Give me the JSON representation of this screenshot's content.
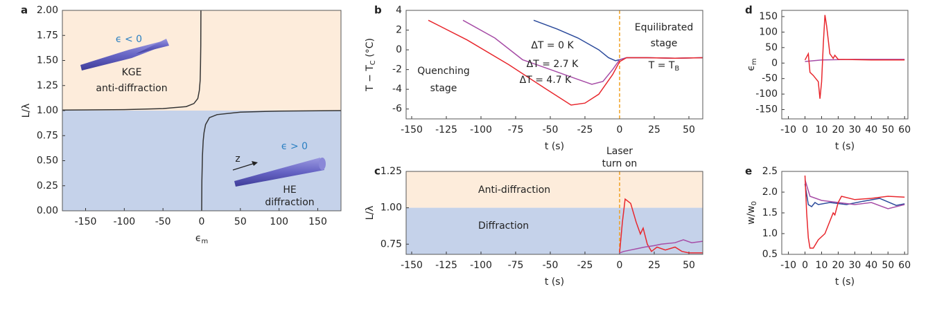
{
  "chart_data": [
    {
      "type": "line",
      "panel": "a",
      "x_label": [
        "ϵ",
        "m"
      ],
      "y_label": [
        "L/λ"
      ],
      "xlim": [
        -180,
        180
      ],
      "ylim": [
        0,
        2
      ],
      "xticks": [
        -150,
        -100,
        -50,
        0,
        50,
        100,
        150
      ],
      "yticks": [
        {
          "value": 0,
          "label": "0.00"
        },
        0.25,
        {
          "value": 0.5,
          "label": "0.50"
        },
        0.75,
        {
          "value": 1,
          "label": "1.00"
        },
        1.25,
        {
          "value": 1.5,
          "label": "1.50"
        },
        1.75,
        {
          "value": 2,
          "label": "2.00"
        }
      ],
      "regions": [
        {
          "from": 1,
          "to": 2,
          "color": "#fdecdb"
        },
        {
          "from": 0,
          "to": 1,
          "color": "#c5d2ea"
        }
      ],
      "series": [
        {
          "color": "#333333",
          "x": [
            -180,
            -100,
            -50,
            -20,
            -10,
            -5,
            -3,
            -2,
            -1.5,
            -1.2,
            -1
          ],
          "values": [
            1.005,
            1.01,
            1.02,
            1.04,
            1.07,
            1.12,
            1.2,
            1.3,
            1.45,
            1.65,
            2.0
          ]
        },
        {
          "color": "#333333",
          "x": [
            0,
            0.3,
            1,
            2,
            3,
            5,
            10,
            20,
            50,
            100,
            180
          ],
          "values": [
            0,
            0.3,
            0.55,
            0.7,
            0.78,
            0.86,
            0.93,
            0.96,
            0.985,
            0.995,
            1.0
          ]
        }
      ],
      "annotations": [
        {
          "text": [
            "ϵ < 0"
          ],
          "color": "#2a7fc1"
        },
        {
          "text": [
            "KGE"
          ]
        },
        {
          "text": [
            "anti-diffraction"
          ]
        },
        {
          "text": [
            "ϵ > 0"
          ],
          "color": "#2a7fc1"
        },
        {
          "text": [
            "z"
          ]
        },
        {
          "text": [
            "HE"
          ]
        },
        {
          "text": [
            "diffraction"
          ]
        }
      ]
    },
    {
      "type": "line",
      "panel": "b",
      "x_label": [
        "t (s)"
      ],
      "y_label": [
        "T − T",
        "C",
        " (°C)"
      ],
      "xlim": [
        -154,
        60
      ],
      "ylim": [
        -7,
        4
      ],
      "xticks": [
        -150,
        -125,
        -100,
        -75,
        -50,
        -25,
        0,
        25,
        50
      ],
      "yticks": [
        -6,
        -4,
        -2,
        0,
        2,
        4
      ],
      "vline": 0,
      "vline_color": "#f0a020",
      "series": [
        {
          "name": "ΔT = 0 K",
          "color": "#2b4a9b",
          "x": [
            -62,
            -45,
            -30,
            -15,
            -8,
            -3,
            0,
            5,
            20,
            40,
            60
          ],
          "values": [
            3,
            2.1,
            1.2,
            0,
            -0.8,
            -1.1,
            -1,
            -0.8,
            -0.8,
            -0.85,
            -0.8
          ]
        },
        {
          "name": "ΔT = 2.7 K",
          "color": "#a64ca6",
          "x": [
            -113,
            -90,
            -70,
            -50,
            -30,
            -20,
            -12,
            -5,
            0,
            5,
            20,
            40,
            60
          ],
          "values": [
            3,
            1.2,
            -1,
            -2,
            -3,
            -3.5,
            -3.2,
            -2,
            -1,
            -0.8,
            -0.8,
            -0.85,
            -0.8
          ]
        },
        {
          "name": "ΔT = 4.7 K",
          "color": "#e8262c",
          "x": [
            -138,
            -110,
            -80,
            -55,
            -35,
            -25,
            -15,
            -5,
            0,
            5,
            20,
            40,
            60
          ],
          "values": [
            3,
            1,
            -1.5,
            -3.8,
            -5.6,
            -5.4,
            -4.5,
            -2.5,
            -1.2,
            -0.8,
            -0.8,
            -0.85,
            -0.8
          ]
        }
      ],
      "annotations": [
        {
          "text": [
            "Quenching"
          ]
        },
        {
          "text": [
            "stage"
          ]
        },
        {
          "text": [
            "Equilibrated"
          ]
        },
        {
          "text": [
            "stage"
          ]
        },
        {
          "text": [
            "T = T",
            "B"
          ]
        }
      ]
    },
    {
      "type": "line",
      "panel": "c",
      "x_label": [
        "t (s)"
      ],
      "y_label": [
        "L/λ"
      ],
      "xlim": [
        -154,
        60
      ],
      "ylim": [
        0.68,
        1.25
      ],
      "xticks": [
        -150,
        -125,
        -100,
        -75,
        -50,
        -25,
        0,
        25,
        50
      ],
      "yticks": [
        0.75,
        {
          "value": 1,
          "label": "1.00"
        },
        1.25
      ],
      "regions": [
        {
          "from": 1,
          "to": 1.25,
          "color": "#fdecdb"
        },
        {
          "from": 0.68,
          "to": 1,
          "color": "#c5d2ea"
        }
      ],
      "vline": 0,
      "vline_color": "#f0a020",
      "series": [
        {
          "color": "#e8262c",
          "x": [
            0,
            2,
            4,
            8,
            12,
            15,
            17,
            20,
            23,
            27,
            33,
            40,
            45,
            50,
            55,
            60
          ],
          "values": [
            0.69,
            0.9,
            1.06,
            1.03,
            0.9,
            0.82,
            0.86,
            0.75,
            0.7,
            0.73,
            0.71,
            0.73,
            0.7,
            0.69,
            0.69,
            0.69
          ]
        },
        {
          "color": "#a64ca6",
          "x": [
            0,
            3,
            8,
            13,
            18,
            25,
            30,
            40,
            46,
            52,
            60
          ],
          "values": [
            0.69,
            0.7,
            0.71,
            0.72,
            0.73,
            0.74,
            0.75,
            0.76,
            0.78,
            0.76,
            0.77
          ]
        }
      ],
      "annotations": [
        {
          "text": [
            "Anti-diffraction"
          ]
        },
        {
          "text": [
            "Diffraction"
          ]
        },
        {
          "text": [
            "Laser"
          ]
        },
        {
          "text": [
            "turn on"
          ]
        }
      ]
    },
    {
      "type": "line",
      "panel": "d",
      "x_label": [
        "t (s)"
      ],
      "y_label": [
        "ϵ",
        "m"
      ],
      "xlim": [
        -14,
        62
      ],
      "ylim": [
        -180,
        170
      ],
      "xticks": [
        -10,
        0,
        10,
        20,
        30,
        40,
        50,
        60
      ],
      "yticks": [
        -150,
        -100,
        -50,
        0,
        50,
        100,
        150
      ],
      "series": [
        {
          "color": "#a64ca6",
          "x": [
            0,
            10,
            30,
            60
          ],
          "values": [
            5,
            10,
            12,
            12
          ]
        },
        {
          "color": "#e8262c",
          "x": [
            0,
            2,
            3,
            5,
            8,
            9,
            10,
            11,
            12,
            13,
            15,
            17,
            18,
            20,
            40,
            60
          ],
          "values": [
            10,
            30,
            -30,
            -40,
            -60,
            -115,
            -60,
            60,
            155,
            120,
            30,
            15,
            25,
            12,
            10,
            10
          ]
        }
      ],
      "annotations": []
    },
    {
      "type": "line",
      "panel": "e",
      "x_label": [
        "t (s)"
      ],
      "y_label": [
        "w/w",
        "0"
      ],
      "xlim": [
        -14,
        62
      ],
      "ylim": [
        0.5,
        2.5
      ],
      "xticks": [
        -10,
        0,
        10,
        20,
        30,
        40,
        50,
        60
      ],
      "yticks": [
        0.5,
        {
          "value": 1,
          "label": "1.0"
        },
        1.5,
        {
          "value": 2,
          "label": "2.0"
        },
        2.5
      ],
      "series": [
        {
          "color": "#2b4a9b",
          "x": [
            0,
            2,
            4,
            6,
            8,
            15,
            25,
            35,
            45,
            55,
            60
          ],
          "values": [
            2.2,
            1.7,
            1.65,
            1.75,
            1.7,
            1.75,
            1.7,
            1.78,
            1.85,
            1.68,
            1.72
          ]
        },
        {
          "color": "#a64ca6",
          "x": [
            0,
            3,
            10,
            20,
            30,
            40,
            50,
            60
          ],
          "values": [
            2.3,
            1.9,
            1.8,
            1.75,
            1.7,
            1.75,
            1.6,
            1.7
          ]
        },
        {
          "color": "#e8262c",
          "x": [
            0,
            1,
            2,
            3,
            5,
            8,
            12,
            15,
            17,
            18,
            20,
            22,
            30,
            40,
            50,
            60
          ],
          "values": [
            2.4,
            1.5,
            0.9,
            0.65,
            0.65,
            0.85,
            1.0,
            1.3,
            1.5,
            1.45,
            1.75,
            1.9,
            1.82,
            1.85,
            1.9,
            1.88
          ]
        }
      ],
      "annotations": []
    }
  ]
}
